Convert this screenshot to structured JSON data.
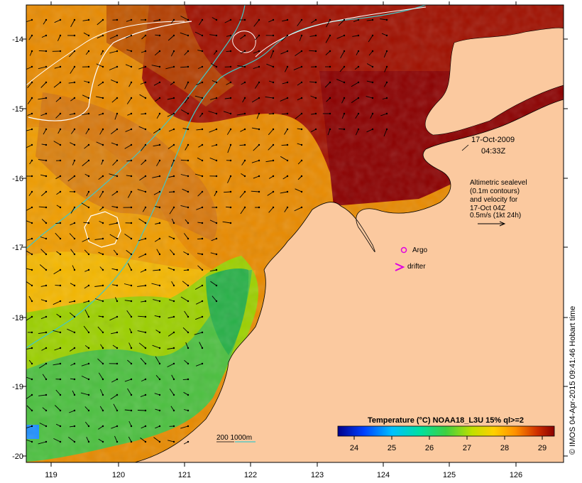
{
  "map": {
    "lon_ticks": [
      "119",
      "120",
      "121",
      "122",
      "123",
      "124",
      "125",
      "126"
    ],
    "lat_ticks": [
      "-14",
      "-15",
      "-16",
      "-17",
      "-18",
      "-19",
      "-20"
    ],
    "timestamp": {
      "date": "17-Oct-2009",
      "time": "04:33Z"
    },
    "altimetry_note": {
      "line1": "Altimetric sealevel",
      "line2": "(0.1m contours)",
      "line3": "and velocity for",
      "line4": "17-Oct 04Z",
      "scale": "0.5m/s (1kt 24h)"
    },
    "legend": {
      "argo": "Argo",
      "drifter": "drifter",
      "depth_contours": "200  1000m"
    },
    "colorbar": {
      "title": "Temperature (°C) NOAA18_L3U 15% ql>=2",
      "ticks": [
        "24",
        "25",
        "26",
        "27",
        "28",
        "29"
      ]
    },
    "credit": "© IMOS 04-Apr-2015 09:41:46 Hobart time",
    "colors": {
      "land": "#fbc99f",
      "hot": "#8b0000",
      "warm": "#e88a00",
      "mid": "#f2b000",
      "cool": "#2ec040",
      "contour_cyan": "#40c8c8",
      "argo": "#e000e0"
    }
  }
}
